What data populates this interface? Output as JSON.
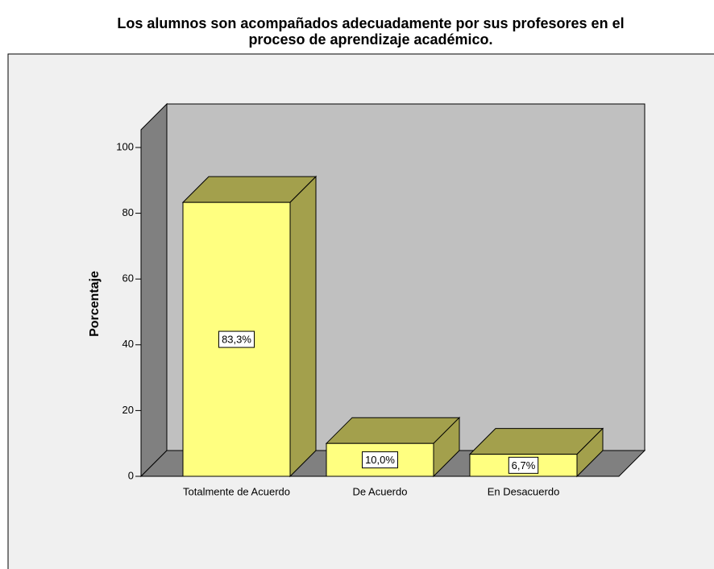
{
  "chart_data": {
    "type": "bar3d",
    "title": [
      "Los alumnos son acompañados adecuadamente por sus profesores en el",
      "proceso de aprendizaje académico."
    ],
    "y_label": "Porcentaje",
    "categories": [
      "Totalmente de Acuerdo",
      "De Acuerdo",
      "En Desacuerdo"
    ],
    "values": [
      83.3,
      10.0,
      6.7
    ],
    "value_labels": [
      "83,3%",
      "10,0%",
      "6,7%"
    ],
    "color": "#ffff80",
    "ylim": [
      0,
      100
    ],
    "yticks": [
      0,
      20,
      40,
      60,
      80,
      100
    ]
  }
}
